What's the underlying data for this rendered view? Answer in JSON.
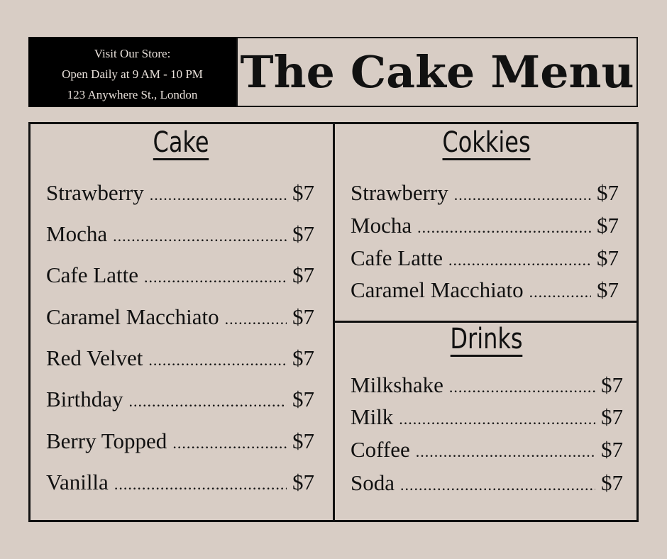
{
  "store_info": {
    "line1": "Visit Our Store:",
    "line2": "Open Daily at 9 AM - 10 PM",
    "line3": "123 Anywhere St., London"
  },
  "title": "The Cake Menu",
  "colors": {
    "background": "#d8cdc5",
    "info_box": "#000000",
    "text": "#111111"
  },
  "sections": {
    "cake": {
      "heading": "Cake",
      "items": [
        {
          "name": "Strawberry",
          "price": "$7"
        },
        {
          "name": "Mocha",
          "price": "$7"
        },
        {
          "name": "Cafe Latte",
          "price": "$7"
        },
        {
          "name": "Caramel Macchiato",
          "price": "$7"
        },
        {
          "name": "Red Velvet",
          "price": "$7"
        },
        {
          "name": "Birthday",
          "price": "$7"
        },
        {
          "name": "Berry Topped",
          "price": "$7"
        },
        {
          "name": "Vanilla",
          "price": "$7"
        }
      ]
    },
    "cookies": {
      "heading": "Cokkies",
      "items": [
        {
          "name": "Strawberry",
          "price": "$7"
        },
        {
          "name": "Mocha",
          "price": "$7"
        },
        {
          "name": "Cafe Latte",
          "price": "$7"
        },
        {
          "name": "Caramel Macchiato",
          "price": "$7"
        }
      ]
    },
    "drinks": {
      "heading": "Drinks",
      "items": [
        {
          "name": "Milkshake",
          "price": "$7"
        },
        {
          "name": "Milk",
          "price": "$7"
        },
        {
          "name": "Coffee",
          "price": "$7"
        },
        {
          "name": "Soda",
          "price": "$7"
        }
      ]
    }
  }
}
